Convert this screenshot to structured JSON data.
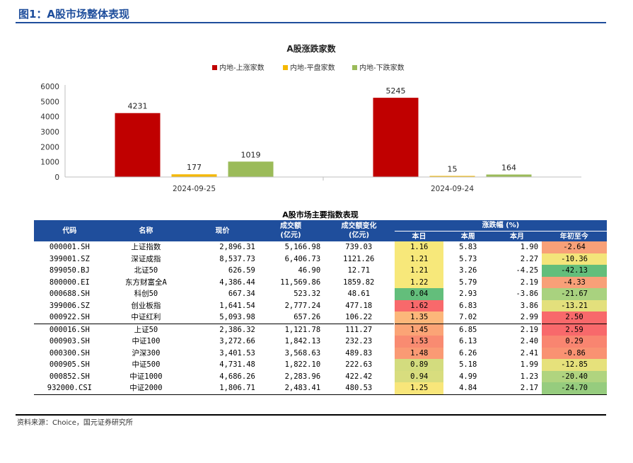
{
  "figure_title": "图1：A股市场整体表现",
  "source": "资料来源：Choice，国元证券研究所",
  "chart_data": {
    "type": "bar",
    "title": "A股涨跌家数",
    "categories": [
      "2024-09-25",
      "2024-09-24"
    ],
    "series": [
      {
        "name": "内地-上涨家数",
        "values": [
          4231,
          5245
        ],
        "color": "#c00000"
      },
      {
        "name": "内地-平盘家数",
        "values": [
          177,
          15
        ],
        "color": "#f5b800"
      },
      {
        "name": "内地-下跌家数",
        "values": [
          1019,
          164
        ],
        "color": "#9bbb59"
      }
    ],
    "yticks": [
      "0",
      "1000",
      "2000",
      "3000",
      "4000",
      "5000",
      "6000"
    ],
    "ylim": [
      0,
      6000
    ],
    "legend": "top",
    "grid": false
  },
  "table": {
    "title": "A股市场主要指数表现",
    "headers": {
      "code": "代码",
      "name": "名称",
      "price": "现价",
      "volume": "成交额",
      "volume_unit": "(亿元)",
      "volume_change": "成交额变化",
      "volume_change_unit": "(亿元)",
      "change_group": "涨跌幅 (%)",
      "day": "本日",
      "week": "本周",
      "month": "本月",
      "ytd": "年初至今"
    },
    "rows": [
      {
        "code": "000001.SH",
        "name": "上证指数",
        "price": "2,896.31",
        "volume": "5,166.98",
        "vchg": "739.03",
        "day": "1.16",
        "week": "5.83",
        "month": "1.90",
        "ytd": "-2.64",
        "day_color": "#f7e87a",
        "ytd_color": "#f8a078"
      },
      {
        "code": "399001.SZ",
        "name": "深证成指",
        "price": "8,537.73",
        "volume": "6,406.73",
        "vchg": "1121.26",
        "day": "1.21",
        "week": "5.73",
        "month": "2.27",
        "ytd": "-10.36",
        "day_color": "#f7e87a",
        "ytd_color": "#f3e57a"
      },
      {
        "code": "899050.BJ",
        "name": "北证50",
        "price": "626.59",
        "volume": "46.90",
        "vchg": "12.71",
        "day": "1.21",
        "week": "3.26",
        "month": "-4.25",
        "ytd": "-42.13",
        "day_color": "#f7e87a",
        "ytd_color": "#63be7b"
      },
      {
        "code": "800000.EI",
        "name": "东方财富全A",
        "price": "4,386.44",
        "volume": "11,569.86",
        "vchg": "1859.82",
        "day": "1.22",
        "week": "5.79",
        "month": "2.19",
        "ytd": "-4.33",
        "day_color": "#f7e87a",
        "ytd_color": "#f8a078"
      },
      {
        "code": "000688.SH",
        "name": "科创50",
        "price": "667.34",
        "volume": "523.32",
        "vchg": "48.61",
        "day": "0.04",
        "week": "2.93",
        "month": "-3.86",
        "ytd": "-21.67",
        "day_color": "#63be7b",
        "ytd_color": "#a9d27f"
      },
      {
        "code": "399006.SZ",
        "name": "创业板指",
        "price": "1,641.54",
        "volume": "2,777.24",
        "vchg": "477.18",
        "day": "1.62",
        "week": "6.83",
        "month": "3.86",
        "ytd": "-13.21",
        "day_color": "#f8696b",
        "ytd_color": "#e3e07c"
      },
      {
        "code": "000922.SH",
        "name": "中证红利",
        "price": "5,093.98",
        "volume": "657.26",
        "vchg": "106.22",
        "day": "1.35",
        "week": "7.02",
        "month": "2.99",
        "ytd": "2.50",
        "day_color": "#fcb77a",
        "ytd_color": "#f8696b"
      },
      {
        "code": "000016.SH",
        "name": "上证50",
        "price": "2,386.32",
        "volume": "1,121.78",
        "vchg": "111.27",
        "day": "1.45",
        "week": "6.85",
        "month": "2.19",
        "ytd": "2.59",
        "day_color": "#fba476",
        "ytd_color": "#f8696b"
      },
      {
        "code": "000903.SH",
        "name": "中证100",
        "price": "3,272.66",
        "volume": "1,842.13",
        "vchg": "232.23",
        "day": "1.53",
        "week": "6.13",
        "month": "2.40",
        "ytd": "0.29",
        "day_color": "#f98b71",
        "ytd_color": "#f98570"
      },
      {
        "code": "000300.SH",
        "name": "沪深300",
        "price": "3,401.53",
        "volume": "3,568.63",
        "vchg": "489.83",
        "day": "1.48",
        "week": "6.26",
        "month": "2.41",
        "ytd": "-0.86",
        "day_color": "#fa9a74",
        "ytd_color": "#f99272"
      },
      {
        "code": "000905.SH",
        "name": "中证500",
        "price": "4,731.48",
        "volume": "1,822.10",
        "vchg": "222.63",
        "day": "0.89",
        "week": "5.18",
        "month": "1.99",
        "ytd": "-12.85",
        "day_color": "#d3dc7e",
        "ytd_color": "#e6e17b"
      },
      {
        "code": "000852.SH",
        "name": "中证1000",
        "price": "4,686.26",
        "volume": "2,283.96",
        "vchg": "422.42",
        "day": "0.94",
        "week": "4.99",
        "month": "1.23",
        "ytd": "-20.40",
        "day_color": "#d8dd7e",
        "ytd_color": "#b0d47f"
      },
      {
        "code": "932000.CSI",
        "name": "中证2000",
        "price": "1,806.71",
        "volume": "2,483.41",
        "vchg": "480.53",
        "day": "1.25",
        "week": "4.84",
        "month": "2.17",
        "ytd": "-24.70",
        "day_color": "#f8e67a",
        "ytd_color": "#96cc7e"
      }
    ]
  }
}
